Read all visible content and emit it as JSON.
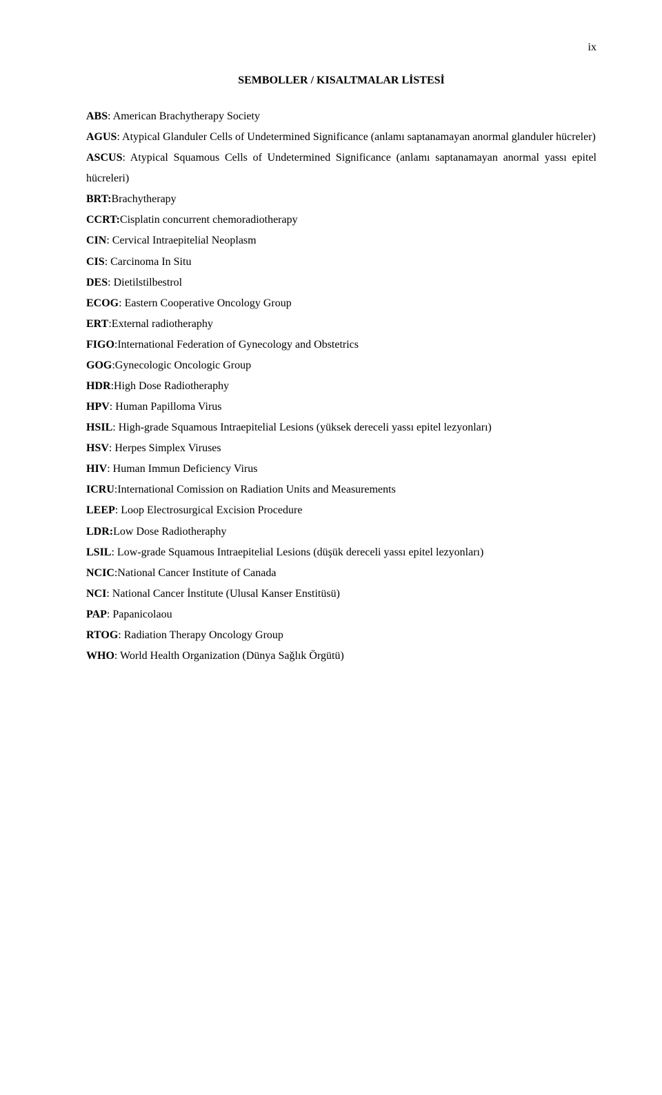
{
  "pageNumber": "ix",
  "title": "SEMBOLLER / KISALTMALAR LİSTESİ",
  "entries": [
    {
      "abbr": "ABS",
      "def": ": American Brachytherapy Society",
      "justify": false
    },
    {
      "abbr": "AGUS",
      "def": ": Atypical Glanduler Cells of Undetermined Significance (anlamı saptanamayan anormal glanduler hücreler)",
      "justify": true
    },
    {
      "abbr": "ASCUS",
      "def": ": Atypical Squamous Cells of Undetermined Significance (anlamı saptanamayan anormal yassı epitel hücreleri)",
      "justify": true
    },
    {
      "abbr": "BRT:",
      "def": "Brachytherapy",
      "justify": false
    },
    {
      "abbr": "CCRT:",
      "def": "Cisplatin concurrent chemoradiotherapy",
      "justify": false
    },
    {
      "abbr": "CIN",
      "def": ": Cervical Intraepitelial Neoplasm",
      "justify": false
    },
    {
      "abbr": "CIS",
      "def": ": Carcinoma In Situ",
      "justify": false
    },
    {
      "abbr": "DES",
      "def": ": Dietilstilbestrol",
      "justify": false
    },
    {
      "abbr": "ECOG",
      "def": ": Eastern Cooperative Oncology Group",
      "justify": false
    },
    {
      "abbr": "ERT",
      "def": ":External  radiotheraphy",
      "justify": false
    },
    {
      "abbr": "FIGO",
      "def": ":International Federation of Gynecology and Obstetrics",
      "justify": false
    },
    {
      "abbr": "GOG",
      "def": ":Gynecologic Oncologic Group",
      "justify": false
    },
    {
      "abbr": "HDR",
      "def": ":High Dose Radiotheraphy",
      "justify": false
    },
    {
      "abbr": "HPV",
      "def": ": Human Papilloma Virus",
      "justify": false
    },
    {
      "abbr": "HSIL",
      "def": ": High-grade Squamous Intraepitelial Lesions (yüksek dereceli yassı epitel lezyonları)",
      "justify": true
    },
    {
      "abbr": "HSV",
      "def": ": Herpes Simplex Viruses",
      "justify": false
    },
    {
      "abbr": "HIV",
      "def": ": Human Immun Deficiency Virus",
      "justify": false
    },
    {
      "abbr": "ICRU",
      "def": ":International Comission on Radiation Units and Measurements",
      "justify": false
    },
    {
      "abbr": "LEEP",
      "def": ": Loop Electrosurgical Excision Procedure",
      "justify": false
    },
    {
      "abbr": "LDR:",
      "def": "Low Dose Radiotheraphy",
      "justify": false
    },
    {
      "abbr": "LSIL",
      "def": ": Low-grade Squamous Intraepitelial Lesions (düşük dereceli yassı epitel lezyonları)",
      "justify": true
    },
    {
      "abbr": "NCIC",
      "def": ":National Cancer Institute of Canada",
      "justify": false
    },
    {
      "abbr": "NCI",
      "def": ": National Cancer İnstitute (Ulusal Kanser Enstitüsü)",
      "justify": false
    },
    {
      "abbr": "PAP",
      "def": ": Papanicolaou",
      "justify": false
    },
    {
      "abbr": "RTOG",
      "def": ": Radiation Therapy Oncology Group",
      "justify": false
    },
    {
      "abbr": "WHO",
      "def": ": World Health Organization (Dünya Sağlık Örgütü)",
      "justify": false
    }
  ]
}
